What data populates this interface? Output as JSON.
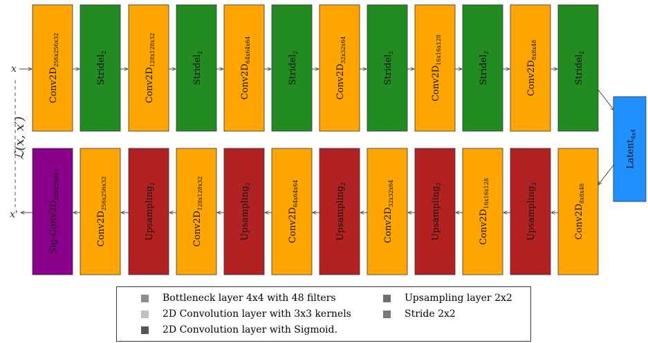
{
  "input_label": "x",
  "output_label": "x'",
  "loss_label": "ℒ(x, x′)",
  "encoder": [
    {
      "type": "conv",
      "base": "Conv2D",
      "sub": "256x256x32"
    },
    {
      "type": "stride",
      "base": "Stridel",
      "sub": "2"
    },
    {
      "type": "conv",
      "base": "Conv2D",
      "sub": "128x128x32"
    },
    {
      "type": "stride",
      "base": "Stridel",
      "sub": "2"
    },
    {
      "type": "conv",
      "base": "Conv2D",
      "sub": "64x64x64"
    },
    {
      "type": "stride",
      "base": "Stridel",
      "sub": "2"
    },
    {
      "type": "conv",
      "base": "Conv2D",
      "sub": "32x32x64"
    },
    {
      "type": "stride",
      "base": "Stridel",
      "sub": "2"
    },
    {
      "type": "conv",
      "base": "Conv2D",
      "sub": "16x16x128"
    },
    {
      "type": "stride",
      "base": "Stridel",
      "sub": "2"
    },
    {
      "type": "conv",
      "base": "Conv2D",
      "sub": "8x8x48"
    },
    {
      "type": "stride",
      "base": "Stridel",
      "sub": "2"
    }
  ],
  "latent": {
    "base": "Latent",
    "sub": "4x4"
  },
  "decoder": [
    {
      "type": "sigconv",
      "base": "Sig-Conv2D",
      "sub": "256x256x3"
    },
    {
      "type": "conv",
      "base": "Conv2D",
      "sub": "256x256x32"
    },
    {
      "type": "up",
      "base": "Upsampling",
      "sub": "2"
    },
    {
      "type": "conv",
      "base": "Conv2D",
      "sub": "128x128x32"
    },
    {
      "type": "up",
      "base": "Upsampling",
      "sub": "2"
    },
    {
      "type": "conv",
      "base": "Conv2D",
      "sub": "64x64x64"
    },
    {
      "type": "up",
      "base": "Upsampling",
      "sub": "2"
    },
    {
      "type": "conv",
      "base": "Conv2D",
      "sub": "32x32x64"
    },
    {
      "type": "up",
      "base": "Upsampling",
      "sub": "2"
    },
    {
      "type": "conv",
      "base": "Conv2D",
      "sub": "16x16x128"
    },
    {
      "type": "up",
      "base": "Upsampling",
      "sub": "2"
    },
    {
      "type": "conv",
      "base": "Conv2D",
      "sub": "8x8x48"
    }
  ],
  "colors": {
    "conv": "#FFA500",
    "stride": "#228B22",
    "up": "#B22222",
    "sigconv": "#8B008B",
    "latent": "#1E90FF"
  },
  "legend": [
    {
      "label": "Bottleneck layer 4x4 with 48 filters",
      "color": "#8c8c8c"
    },
    {
      "label": "2D Convolution layer with 3x3 kernels",
      "color": "#bfbfbf"
    },
    {
      "label": "2D Convolution layer with Sigmoid.",
      "color": "#555555"
    },
    {
      "label": "Upsampling layer 2x2",
      "color": "#6e6e6e"
    },
    {
      "label": "Stride 2x2",
      "color": "#7a7a7a"
    }
  ]
}
